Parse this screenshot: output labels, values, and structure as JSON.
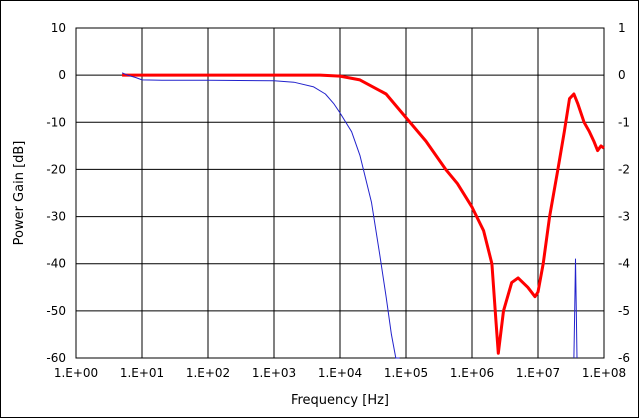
{
  "chart_data": {
    "type": "line",
    "title": "",
    "xlabel": "Frequency [Hz]",
    "ylabel": "Power Gain [dB]",
    "x_scale": "log",
    "xlim": [
      1,
      100000000
    ],
    "ylim": [
      -60,
      10
    ],
    "y2lim": [
      -6,
      1
    ],
    "grid": true,
    "legend": "none",
    "x_tick_labels": [
      "1.E+00",
      "1.E+01",
      "1.E+02",
      "1.E+03",
      "1.E+04",
      "1.E+05",
      "1.E+06",
      "1.E+07",
      "1.E+08"
    ],
    "y_tick_labels": [
      "10",
      "0",
      "-10",
      "-20",
      "-30",
      "-40",
      "-50",
      "-60"
    ],
    "y2_tick_labels": [
      "1",
      "0",
      "-1",
      "-2",
      "-3",
      "-4",
      "-5",
      "-6"
    ],
    "series": [
      {
        "color": "#ff0000",
        "axis": "left",
        "x": [
          5,
          10,
          100,
          1000,
          5000,
          10000,
          20000,
          50000,
          100000,
          200000,
          400000,
          600000,
          1000000,
          1500000,
          2000000,
          2300000,
          2500000,
          3000000,
          4000000,
          5000000,
          7000000,
          9000000,
          10000000,
          12000000,
          15000000,
          20000000,
          25000000,
          30000000,
          35000000,
          40000000,
          50000000,
          60000000,
          70000000,
          80000000,
          90000000,
          100000000
        ],
        "y": [
          0,
          0,
          0,
          0,
          0,
          -0.2,
          -1,
          -4,
          -9,
          -14,
          -20,
          -23,
          -28,
          -33,
          -40,
          -52,
          -59,
          -50,
          -44,
          -43,
          -45,
          -47,
          -46,
          -40,
          -30,
          -20,
          -12,
          -5,
          -4,
          -6,
          -10,
          -12,
          -14,
          -16,
          -15,
          -15.5
        ]
      },
      {
        "color": "#2222cc",
        "axis": "left",
        "x": [
          5,
          6,
          8,
          10,
          20,
          100,
          1000,
          2000,
          4000,
          6000,
          8000,
          10000,
          15000,
          20000,
          30000,
          40000,
          50000,
          60000,
          70000,
          80000
        ],
        "y": [
          0.5,
          0,
          -0.5,
          -1,
          -1.1,
          -1.1,
          -1.2,
          -1.5,
          -2.5,
          -4,
          -6,
          -8,
          -12,
          -17,
          -27,
          -38,
          -47,
          -55,
          -60,
          -60
        ]
      },
      {
        "color": "#2222cc",
        "axis": "left",
        "x": [
          35000000,
          36000000,
          37000000,
          38000000,
          39000000
        ],
        "y": [
          -60,
          -50,
          -39,
          -50,
          -60
        ]
      }
    ]
  }
}
